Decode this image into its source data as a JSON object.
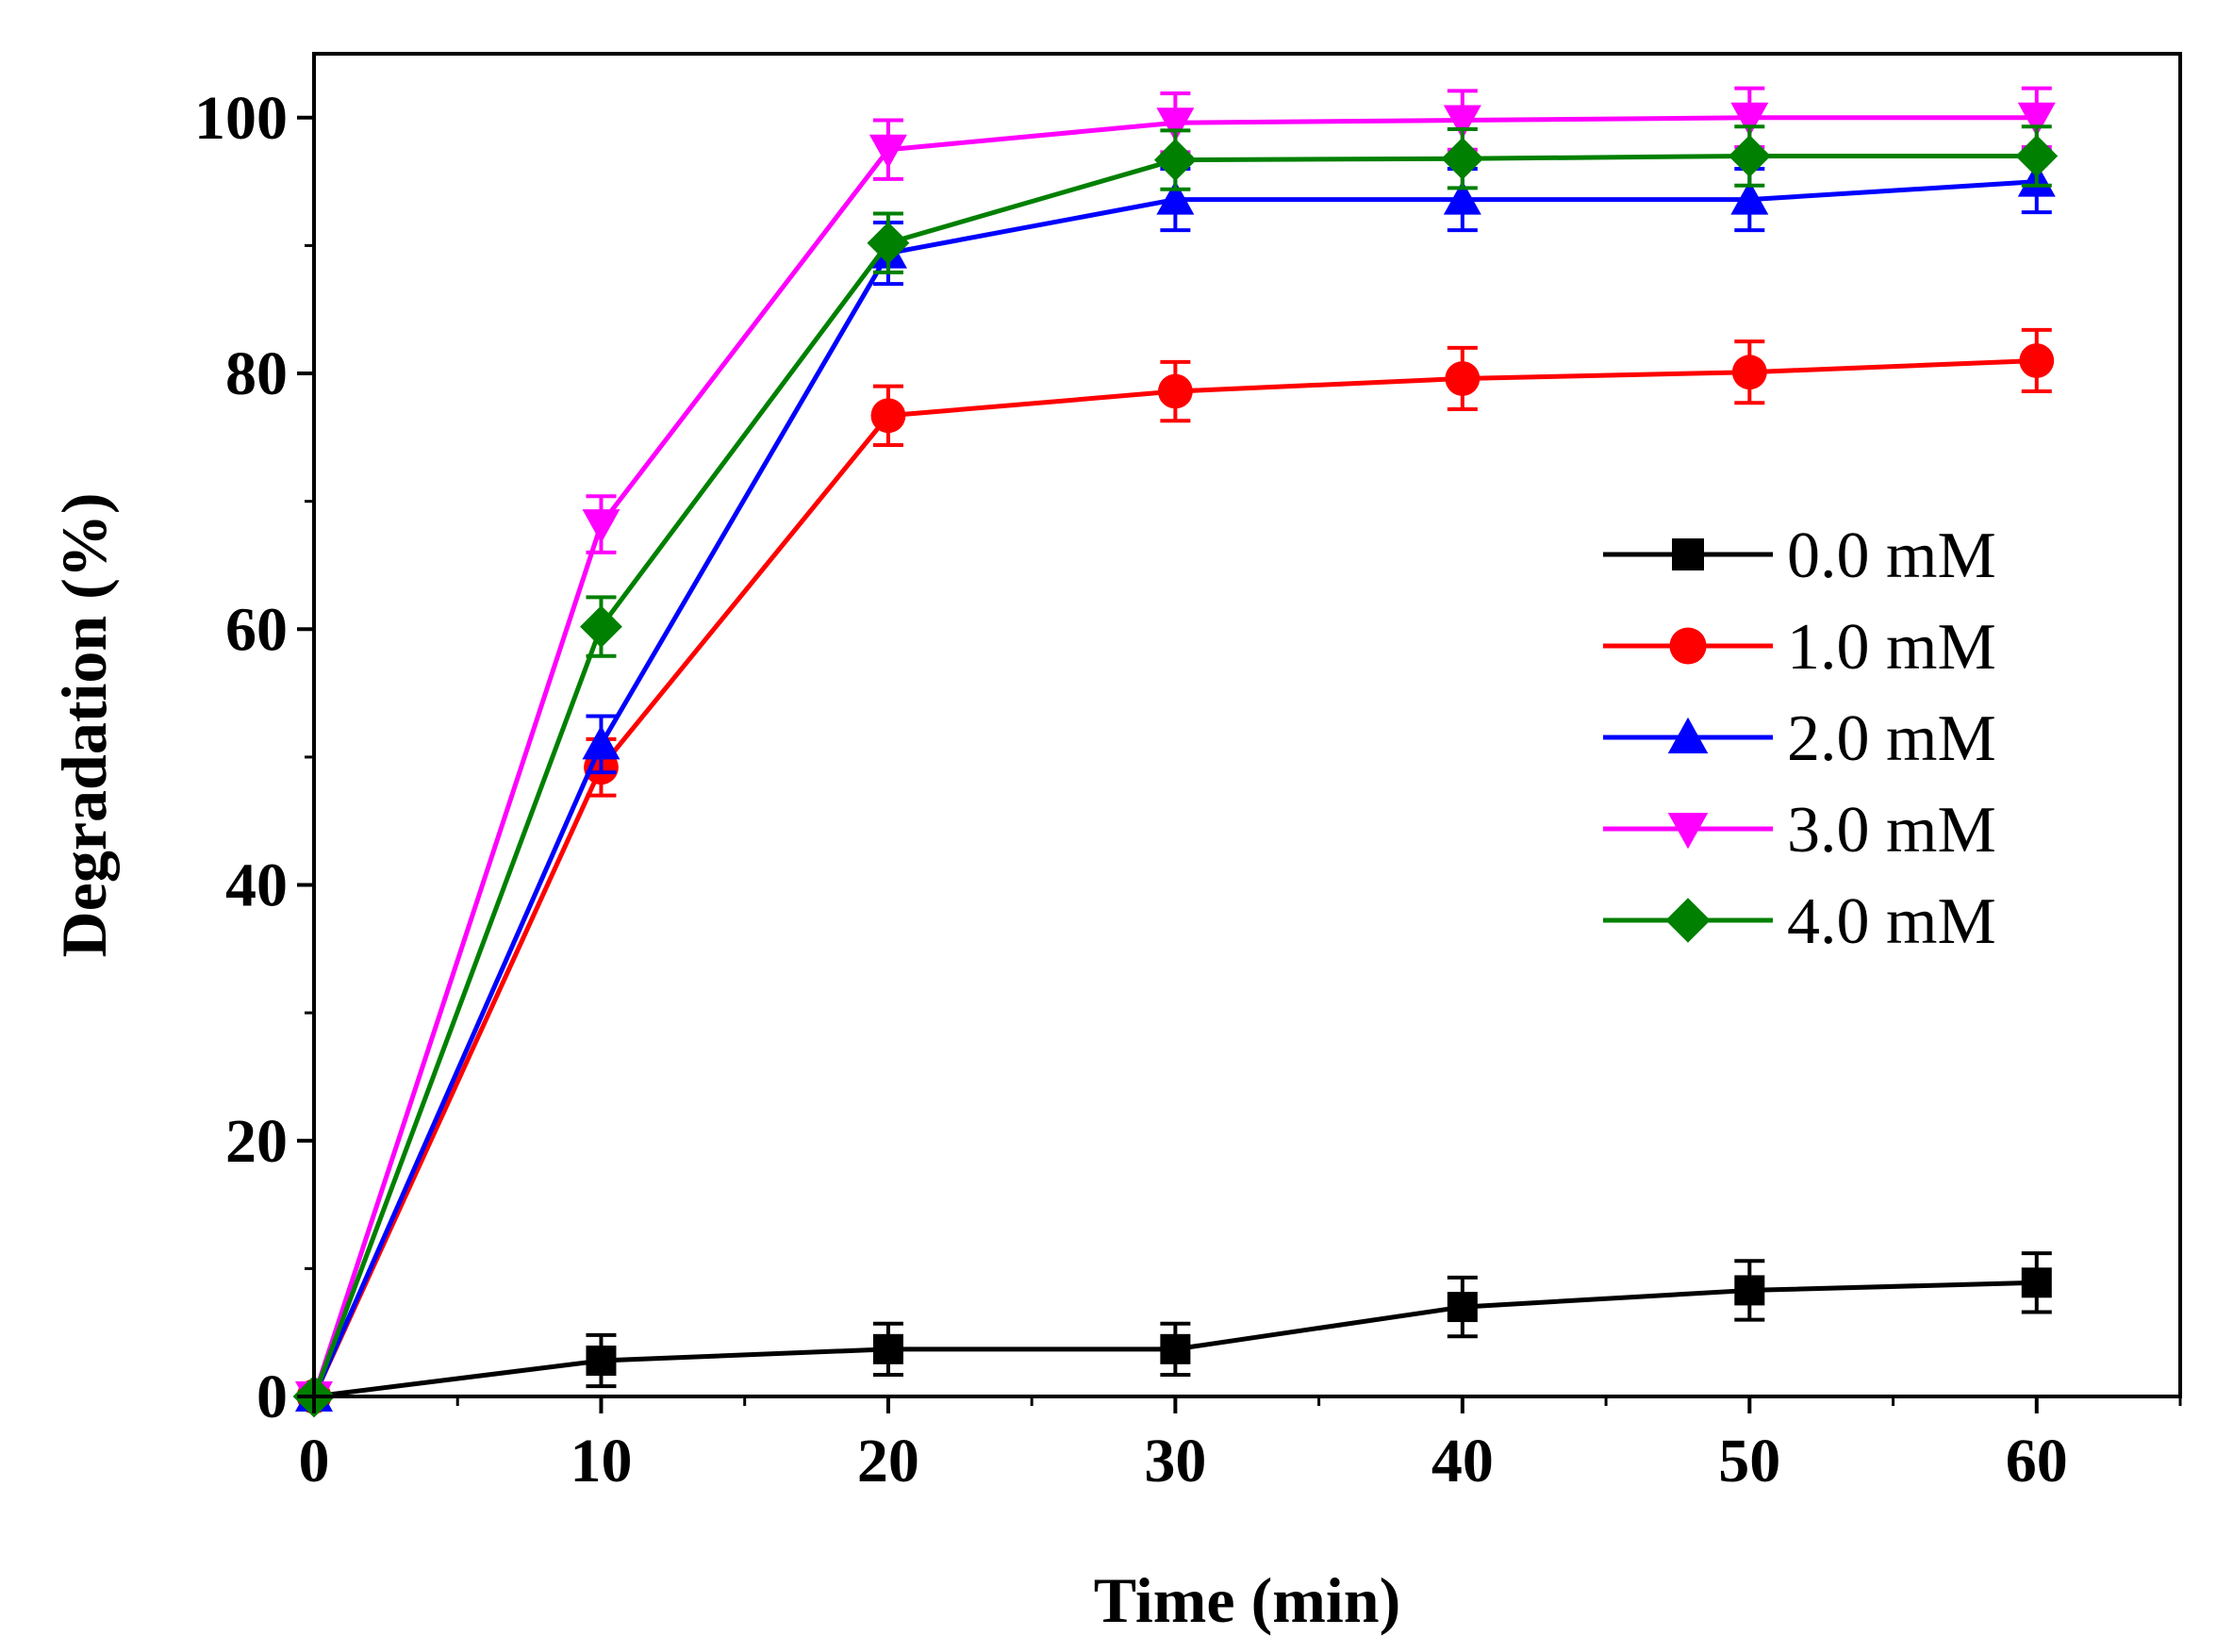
{
  "chart_data": {
    "type": "line",
    "title": "",
    "xlabel": "Time (min)",
    "ylabel": "Degradation (%)",
    "xlim": [
      0,
      65
    ],
    "ylim": [
      0,
      105
    ],
    "x": [
      0,
      10,
      20,
      30,
      40,
      50,
      60
    ],
    "xticks": [
      0,
      10,
      20,
      30,
      40,
      50,
      60
    ],
    "yticks": [
      0,
      20,
      40,
      60,
      80,
      100
    ],
    "xtick_labels": [
      "0",
      "10",
      "20",
      "30",
      "40",
      "50",
      "60"
    ],
    "ytick_labels": [
      "0",
      "20",
      "40",
      "60",
      "80",
      "100"
    ],
    "grid": false,
    "legend_position": "center-right",
    "series": [
      {
        "name": "0.0 mM",
        "color": "#000000",
        "marker": "square",
        "values": [
          0,
          2.8,
          3.7,
          3.7,
          7.0,
          8.3,
          8.9
        ],
        "errors": [
          0,
          2.0,
          2.0,
          2.0,
          2.3,
          2.3,
          2.3
        ]
      },
      {
        "name": "1.0 mM",
        "color": "#ff0000",
        "marker": "circle",
        "values": [
          0,
          49.2,
          76.7,
          78.6,
          79.6,
          80.1,
          81.0
        ],
        "errors": [
          0,
          2.2,
          2.3,
          2.3,
          2.4,
          2.4,
          2.4
        ]
      },
      {
        "name": "2.0 mM",
        "color": "#0000ff",
        "marker": "triangle-up",
        "values": [
          0,
          51.0,
          89.4,
          93.6,
          93.6,
          93.6,
          95.0
        ],
        "errors": [
          0,
          2.2,
          2.4,
          2.4,
          2.4,
          2.4,
          2.4
        ]
      },
      {
        "name": "3.0 mM",
        "color": "#ff00ff",
        "marker": "triangle-down",
        "values": [
          0,
          68.2,
          97.5,
          99.6,
          99.8,
          100.0,
          100.0
        ],
        "errors": [
          0,
          2.2,
          2.3,
          2.3,
          2.3,
          2.3,
          2.3
        ]
      },
      {
        "name": "4.0 mM",
        "color": "#008000",
        "marker": "diamond",
        "values": [
          0,
          60.2,
          90.2,
          96.7,
          96.8,
          97.0,
          97.0
        ],
        "errors": [
          0,
          2.3,
          2.3,
          2.3,
          2.3,
          2.3,
          2.3
        ]
      }
    ]
  }
}
